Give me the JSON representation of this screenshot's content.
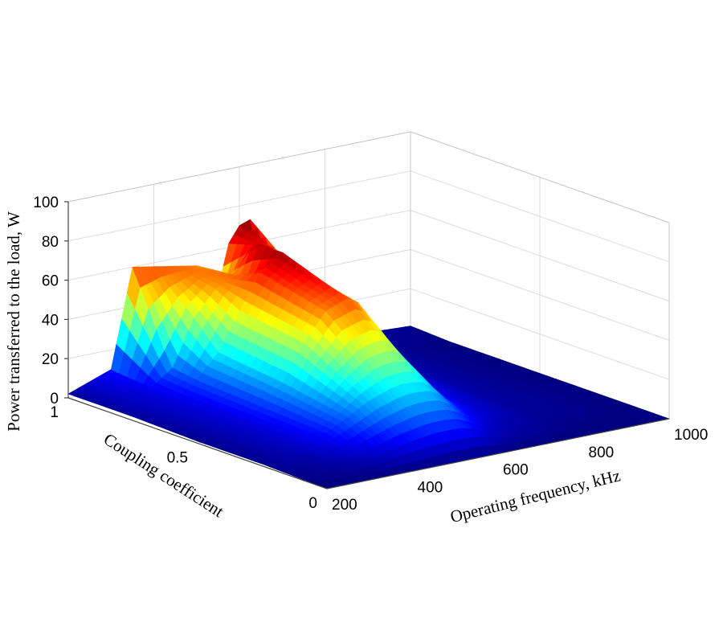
{
  "chart_data": {
    "type": "surface",
    "x": {
      "label": "Operating frequency, kHz",
      "range": [
        200,
        1000
      ],
      "ticks": [
        200,
        400,
        600,
        800,
        1000
      ],
      "tick_labels": [
        "200",
        "400",
        "600",
        "800",
        "1000"
      ]
    },
    "y": {
      "label": "Coupling coefficient",
      "range": [
        0,
        1
      ],
      "ticks": [
        0,
        0.5,
        1
      ],
      "tick_labels": [
        "0",
        "0.5",
        "1"
      ]
    },
    "z": {
      "label": "Power transferred to the load, W",
      "range": [
        0,
        100
      ],
      "ticks": [
        0,
        20,
        40,
        60,
        80,
        100
      ],
      "tick_labels": [
        "0",
        "20",
        "40",
        "60",
        "80",
        "100"
      ]
    },
    "grid": true,
    "colormap": "jet",
    "surface": {
      "frequency_kHz": [
        200,
        300,
        350,
        400,
        450,
        500,
        525,
        550,
        575,
        600,
        625,
        650,
        700,
        800,
        900,
        1000
      ],
      "coupling": [
        0,
        0.25,
        0.5,
        0.75,
        0.85,
        1
      ],
      "power_W": [
        [
          0,
          0,
          0,
          0,
          0,
          0,
          0,
          0,
          0,
          0,
          0,
          0,
          0,
          0,
          0,
          0
        ],
        [
          1,
          5,
          10,
          16,
          22,
          26,
          27,
          27,
          26,
          22,
          16,
          11,
          6,
          2,
          1,
          0
        ],
        [
          1,
          6,
          12,
          22,
          40,
          54,
          56,
          58,
          55,
          44,
          30,
          18,
          9,
          3,
          1,
          0
        ],
        [
          2,
          7,
          14,
          26,
          45,
          62,
          66,
          70,
          62,
          50,
          35,
          20,
          10,
          3,
          1,
          0
        ],
        [
          2,
          8,
          16,
          40,
          52,
          56,
          54,
          70,
          68,
          62,
          56,
          36,
          16,
          4,
          1,
          0
        ],
        [
          2,
          10,
          60,
          58,
          56,
          54,
          48,
          40,
          62,
          70,
          72,
          48,
          20,
          5,
          2,
          1
        ]
      ]
    }
  }
}
